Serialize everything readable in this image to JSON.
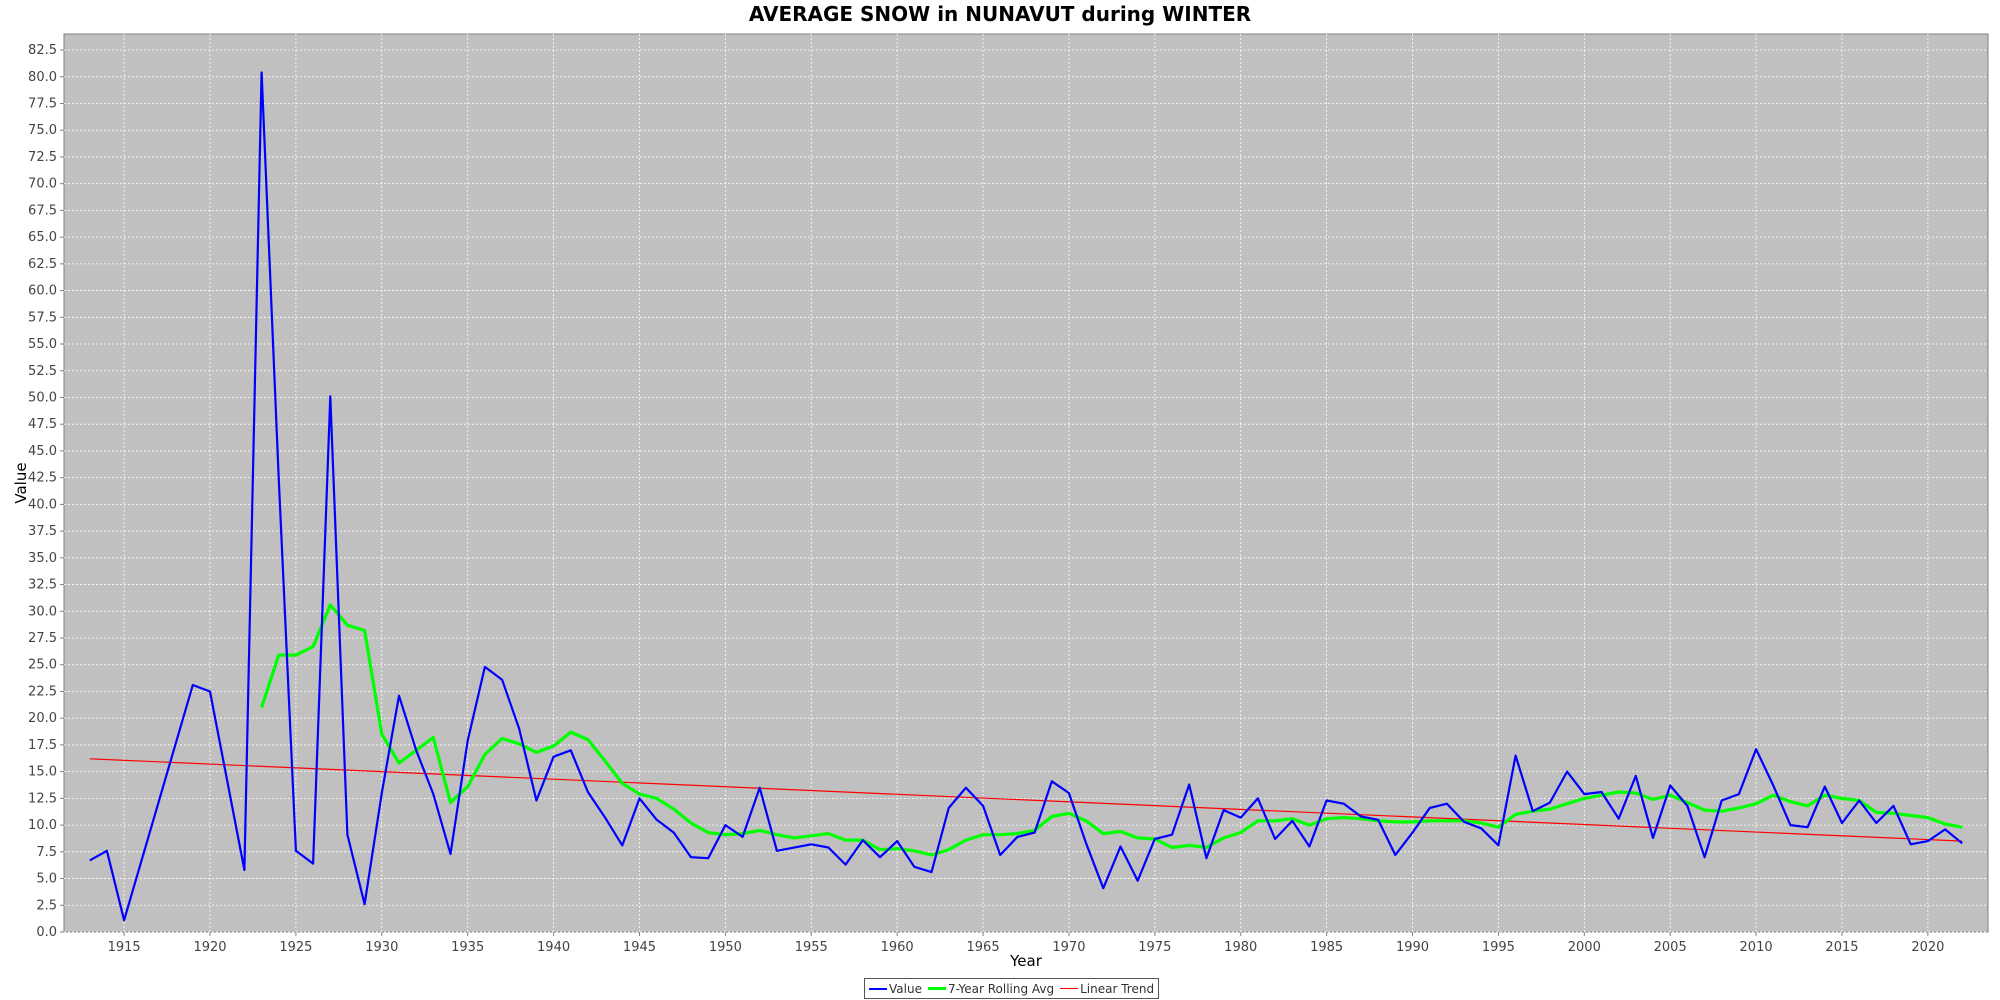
{
  "chart_data": {
    "type": "line",
    "title": "AVERAGE SNOW in NUNAVUT during WINTER",
    "xlabel": "Year",
    "ylabel": "Value",
    "xlim": [
      1911.5,
      2023.5
    ],
    "ylim": [
      0,
      84
    ],
    "y_ticks": [
      0,
      2.5,
      5,
      7.5,
      10,
      12.5,
      15,
      17.5,
      20,
      22.5,
      25,
      27.5,
      30,
      32.5,
      35,
      37.5,
      40,
      42.5,
      45,
      47.5,
      50,
      52.5,
      55,
      57.5,
      60,
      62.5,
      65,
      67.5,
      70,
      72.5,
      75,
      77.5,
      80,
      82.5
    ],
    "x_ticks": [
      1915,
      1920,
      1925,
      1930,
      1935,
      1940,
      1945,
      1950,
      1955,
      1960,
      1965,
      1970,
      1975,
      1980,
      1985,
      1990,
      1995,
      2000,
      2005,
      2010,
      2015,
      2020
    ],
    "grid": true,
    "legend_position": "bottom",
    "background": "#c0c0c0",
    "series": [
      {
        "name": "Value",
        "color": "#0000ff",
        "x": [
          1913,
          1914,
          1915,
          1919,
          1920,
          1922,
          1923,
          1924,
          1925,
          1926,
          1927,
          1928,
          1929,
          1930,
          1931,
          1932,
          1933,
          1934,
          1935,
          1936,
          1937,
          1938,
          1939,
          1940,
          1941,
          1942,
          1943,
          1944,
          1945,
          1946,
          1947,
          1948,
          1949,
          1950,
          1951,
          1952,
          1953,
          1955,
          1956,
          1957,
          1958,
          1959,
          1960,
          1961,
          1962,
          1963,
          1964,
          1965,
          1966,
          1967,
          1968,
          1969,
          1970,
          1971,
          1972,
          1973,
          1974,
          1975,
          1976,
          1977,
          1978,
          1979,
          1980,
          1981,
          1982,
          1983,
          1984,
          1985,
          1986,
          1987,
          1988,
          1989,
          1990,
          1991,
          1992,
          1993,
          1994,
          1995,
          1996,
          1997,
          1998,
          1999,
          2000,
          2001,
          2002,
          2003,
          2004,
          2005,
          2006,
          2007,
          2008,
          2009,
          2010,
          2011,
          2012,
          2013,
          2014,
          2015,
          2016,
          2017,
          2018,
          2019,
          2020,
          2021,
          2022
        ],
        "values": [
          6.7,
          7.6,
          1.1,
          23.1,
          22.5,
          5.8,
          80.4,
          42.5,
          7.6,
          6.4,
          50.1,
          9.1,
          2.6,
          13.0,
          22.1,
          17.0,
          12.9,
          7.3,
          17.9,
          24.8,
          23.6,
          19.0,
          12.3,
          16.4,
          17.0,
          13.1,
          10.7,
          8.1,
          12.5,
          10.5,
          9.3,
          7.0,
          6.9,
          10.0,
          8.9,
          13.5,
          7.6,
          8.2,
          7.9,
          6.3,
          8.6,
          7.0,
          8.5,
          6.1,
          5.6,
          11.6,
          13.5,
          11.8,
          7.2,
          8.9,
          9.3,
          14.1,
          13.0,
          8.3,
          4.1,
          8.0,
          4.8,
          8.7,
          9.1,
          13.8,
          6.9,
          11.4,
          10.7,
          12.5,
          8.7,
          10.4,
          8.0,
          12.3,
          12.0,
          10.8,
          10.5,
          7.2,
          9.3,
          11.6,
          12.0,
          10.3,
          9.7,
          8.1,
          16.5,
          11.3,
          12.1,
          15.0,
          12.9,
          13.1,
          10.6,
          14.6,
          8.8,
          13.7,
          11.8,
          7.0,
          12.3,
          12.9,
          17.1,
          13.7,
          10.0,
          9.8,
          13.6,
          10.2,
          12.3,
          10.2,
          11.8,
          8.2,
          8.5,
          9.6,
          8.3
        ]
      },
      {
        "name": "7-Year Rolling Avg",
        "color": "#00ff00",
        "x": [
          1923,
          1924,
          1925,
          1926,
          1927,
          1928,
          1929,
          1930,
          1931,
          1932,
          1933,
          1934,
          1935,
          1936,
          1937,
          1938,
          1939,
          1940,
          1941,
          1942,
          1943,
          1944,
          1945,
          1946,
          1947,
          1948,
          1949,
          1950,
          1951,
          1952,
          1953,
          1954,
          1955,
          1956,
          1957,
          1958,
          1959,
          1960,
          1961,
          1962,
          1963,
          1964,
          1965,
          1966,
          1967,
          1968,
          1969,
          1970,
          1971,
          1972,
          1973,
          1974,
          1975,
          1976,
          1977,
          1978,
          1979,
          1980,
          1981,
          1982,
          1983,
          1984,
          1985,
          1986,
          1987,
          1988,
          1989,
          1990,
          1991,
          1992,
          1993,
          1994,
          1995,
          1996,
          1997,
          1998,
          1999,
          2000,
          2001,
          2002,
          2003,
          2004,
          2005,
          2006,
          2007,
          2008,
          2009,
          2010,
          2011,
          2012,
          2013,
          2014,
          2015,
          2016,
          2017,
          2018,
          2019,
          2020,
          2021,
          2022
        ],
        "values": [
          21.0,
          25.9,
          25.9,
          26.7,
          30.6,
          28.7,
          28.2,
          18.5,
          15.8,
          17.0,
          18.2,
          12.1,
          13.6,
          16.6,
          18.1,
          17.6,
          16.8,
          17.4,
          18.7,
          18.0,
          16.0,
          13.9,
          12.9,
          12.5,
          11.5,
          10.2,
          9.3,
          9.1,
          9.2,
          9.5,
          9.1,
          8.8,
          9.0,
          9.2,
          8.6,
          8.6,
          7.7,
          7.8,
          7.6,
          7.2,
          7.7,
          8.6,
          9.1,
          9.1,
          9.2,
          9.5,
          10.8,
          11.1,
          10.4,
          9.2,
          9.4,
          8.8,
          8.7,
          7.9,
          8.1,
          7.9,
          8.8,
          9.3,
          10.4,
          10.4,
          10.6,
          10.0,
          10.6,
          10.7,
          10.6,
          10.4,
          10.3,
          10.3,
          10.4,
          10.4,
          10.4,
          10.2,
          9.8,
          11.0,
          11.3,
          11.5,
          12.0,
          12.5,
          12.8,
          13.1,
          13.0,
          12.4,
          12.8,
          12.1,
          11.4,
          11.3,
          11.6,
          12.0,
          12.8,
          12.2,
          11.8,
          12.8,
          12.5,
          12.3,
          11.2,
          11.1,
          10.9,
          10.7,
          10.1,
          9.8
        ]
      },
      {
        "name": "Linear Trend",
        "color": "#ff0000",
        "x": [
          1913,
          2022
        ],
        "values": [
          16.2,
          8.5
        ]
      }
    ]
  }
}
